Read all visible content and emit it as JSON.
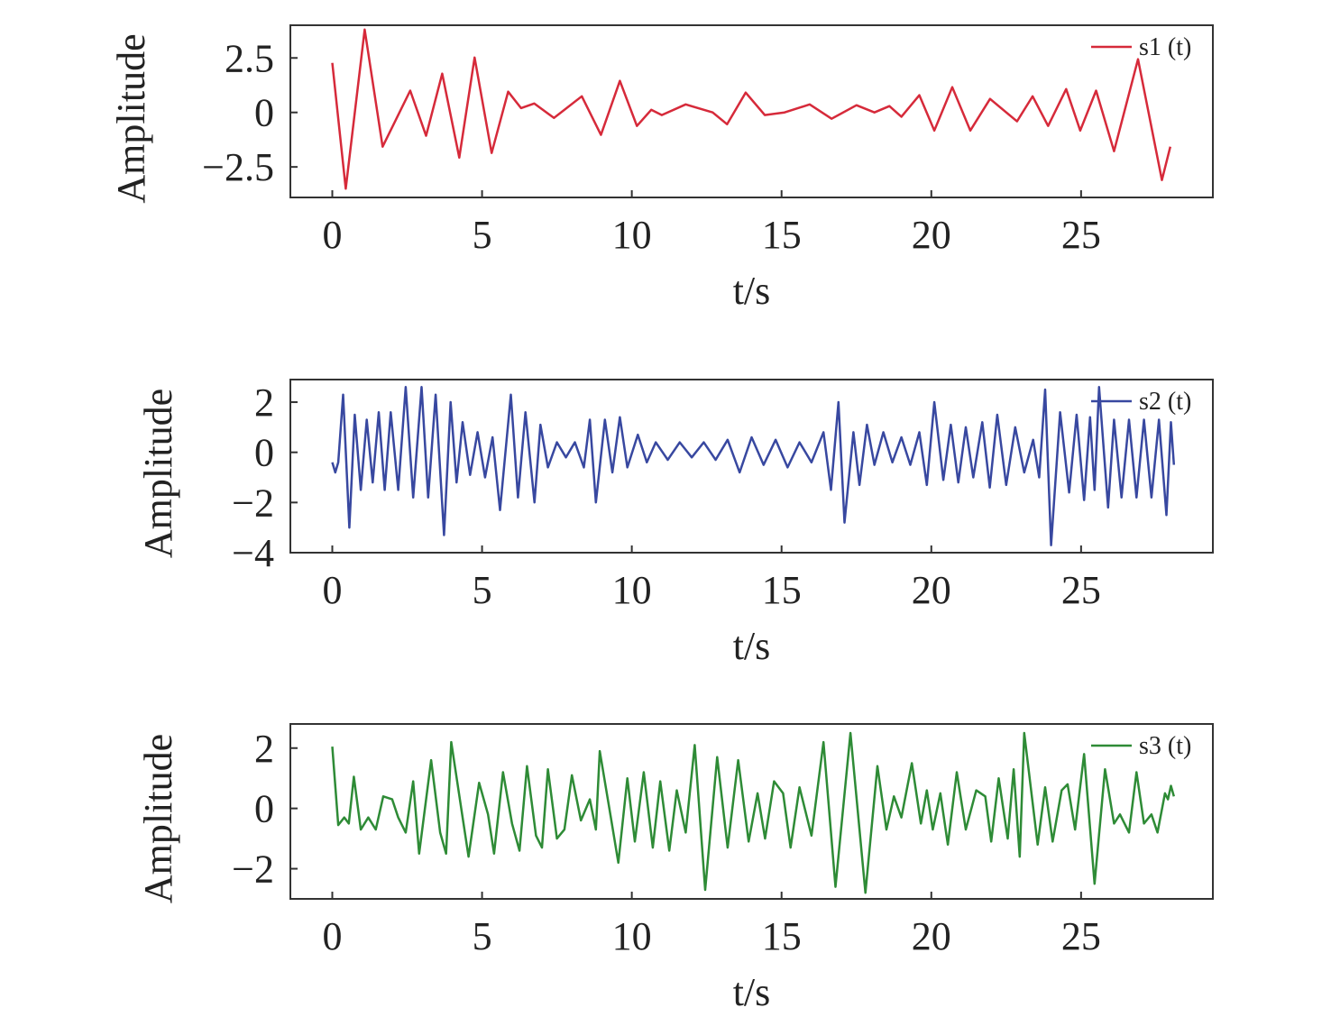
{
  "chart_data": [
    {
      "type": "line",
      "xlabel": "t/s",
      "ylabel": "Amplitude",
      "legend": "upper right",
      "xlim": [
        -1.4,
        29.4
      ],
      "xticks": [
        0,
        5,
        10,
        15,
        20,
        25
      ],
      "ylim": [
        -3.9,
        4.0
      ],
      "yticks": [
        {
          "value": -2.5,
          "label": "−2.5"
        },
        0,
        2.5
      ],
      "x": [
        0,
        0.45,
        1.08,
        1.68,
        2.6,
        3.13,
        3.67,
        4.24,
        4.75,
        5.32,
        5.87,
        6.3,
        6.74,
        7.4,
        8.33,
        8.97,
        9.6,
        10.17,
        10.65,
        11.0,
        11.8,
        12.7,
        13.18,
        13.8,
        14.44,
        15.1,
        15.94,
        16.67,
        17.5,
        18.1,
        18.6,
        19.0,
        19.6,
        20.1,
        20.7,
        21.3,
        21.96,
        22.86,
        23.38,
        23.9,
        24.5,
        24.97,
        25.5,
        26.1,
        26.9,
        27.7,
        27.98
      ],
      "series": [
        {
          "name": "s1 (t)",
          "color": "#d62a3a",
          "values": [
            2.27,
            -3.5,
            3.8,
            -1.57,
            1.0,
            -1.07,
            1.78,
            -2.07,
            2.52,
            -1.86,
            0.95,
            0.2,
            0.41,
            -0.25,
            0.74,
            -1.03,
            1.45,
            -0.62,
            0.12,
            -0.12,
            0.37,
            0.0,
            -0.54,
            0.91,
            -0.12,
            0.0,
            0.37,
            -0.29,
            0.33,
            0.0,
            0.29,
            -0.2,
            0.79,
            -0.83,
            1.16,
            -0.83,
            0.62,
            -0.41,
            0.74,
            -0.62,
            1.07,
            -0.83,
            1.0,
            -1.78,
            2.44,
            -3.1,
            -1.57
          ]
        }
      ]
    },
    {
      "type": "line",
      "xlabel": "t/s",
      "ylabel": "Amplitude",
      "legend": "upper right",
      "xlim": [
        -1.4,
        29.4
      ],
      "xticks": [
        0,
        5,
        10,
        15,
        20,
        25
      ],
      "ylim": [
        -4,
        2.9
      ],
      "yticks": [
        {
          "value": -4,
          "label": "−4"
        },
        {
          "value": -2,
          "label": "−2"
        },
        0,
        2
      ],
      "x": [
        0,
        0.1,
        0.2,
        0.36,
        0.57,
        0.75,
        0.95,
        1.15,
        1.35,
        1.55,
        1.75,
        1.95,
        2.2,
        2.45,
        2.7,
        2.98,
        3.2,
        3.45,
        3.73,
        3.95,
        4.15,
        4.35,
        4.6,
        4.85,
        5.1,
        5.35,
        5.6,
        5.96,
        6.2,
        6.45,
        6.75,
        6.95,
        7.2,
        7.5,
        7.8,
        8.1,
        8.4,
        8.6,
        8.8,
        9.1,
        9.35,
        9.6,
        9.85,
        10.2,
        10.5,
        10.8,
        11.2,
        11.6,
        12.0,
        12.4,
        12.8,
        13.2,
        13.6,
        14.0,
        14.4,
        14.8,
        15.2,
        15.6,
        16.0,
        16.4,
        16.65,
        16.9,
        17.1,
        17.4,
        17.6,
        17.85,
        18.1,
        18.4,
        18.7,
        19.0,
        19.3,
        19.6,
        19.85,
        20.1,
        20.4,
        20.65,
        20.9,
        21.15,
        21.4,
        21.7,
        21.95,
        22.2,
        22.5,
        22.8,
        23.1,
        23.4,
        23.6,
        23.8,
        24.0,
        24.3,
        24.6,
        24.85,
        25.1,
        25.3,
        25.45,
        25.6,
        25.9,
        26.1,
        26.35,
        26.6,
        26.85,
        27.1,
        27.35,
        27.6,
        27.85,
        28.0,
        28.1
      ],
      "series": [
        {
          "name": "s2 (t)",
          "color": "#3848a0",
          "values": [
            -0.4,
            -0.8,
            -0.4,
            2.3,
            -3.0,
            1.5,
            -1.5,
            1.3,
            -1.2,
            1.6,
            -1.5,
            1.6,
            -1.5,
            2.6,
            -1.8,
            2.6,
            -1.8,
            2.3,
            -3.3,
            2.0,
            -1.2,
            1.2,
            -0.9,
            0.8,
            -1.0,
            0.6,
            -2.3,
            2.3,
            -1.8,
            1.6,
            -2.0,
            1.1,
            -0.6,
            0.4,
            -0.2,
            0.4,
            -0.6,
            1.3,
            -2.0,
            1.3,
            -0.8,
            1.4,
            -0.6,
            0.7,
            -0.4,
            0.4,
            -0.3,
            0.4,
            -0.2,
            0.4,
            -0.3,
            0.5,
            -0.8,
            0.6,
            -0.5,
            0.5,
            -0.6,
            0.4,
            -0.4,
            0.8,
            -1.5,
            2.0,
            -2.8,
            0.8,
            -1.3,
            1.1,
            -0.5,
            0.8,
            -0.4,
            0.6,
            -0.5,
            0.8,
            -1.3,
            2.0,
            -1.1,
            1.1,
            -1.2,
            1.0,
            -1.0,
            1.2,
            -1.4,
            1.5,
            -1.3,
            1.0,
            -0.8,
            0.5,
            -1.0,
            2.5,
            -3.7,
            1.6,
            -1.6,
            1.5,
            -1.9,
            1.4,
            -1.5,
            2.6,
            -2.2,
            1.3,
            -1.8,
            1.3,
            -1.8,
            1.3,
            -1.8,
            1.3,
            -2.5,
            1.2,
            -0.5
          ]
        }
      ]
    },
    {
      "type": "line",
      "xlabel": "t/s",
      "ylabel": "Amplitude",
      "legend": "upper right",
      "xlim": [
        -1.4,
        29.4
      ],
      "xticks": [
        0,
        5,
        10,
        15,
        20,
        25
      ],
      "ylim": [
        -3.0,
        2.8
      ],
      "yticks": [
        {
          "value": -2,
          "label": "−2"
        },
        0,
        2
      ],
      "x": [
        0,
        0.2,
        0.4,
        0.55,
        0.72,
        0.95,
        1.2,
        1.45,
        1.7,
        2.0,
        2.2,
        2.45,
        2.7,
        2.9,
        3.3,
        3.6,
        3.8,
        3.97,
        4.35,
        4.55,
        4.9,
        5.2,
        5.4,
        5.7,
        6.0,
        6.25,
        6.5,
        6.8,
        7.0,
        7.2,
        7.5,
        7.75,
        8.0,
        8.3,
        8.6,
        8.8,
        8.93,
        9.3,
        9.55,
        9.85,
        10.1,
        10.4,
        10.7,
        10.95,
        11.25,
        11.5,
        11.8,
        12.1,
        12.45,
        12.85,
        13.2,
        13.55,
        13.9,
        14.2,
        14.45,
        14.75,
        15.05,
        15.3,
        15.6,
        16.0,
        16.4,
        16.8,
        17.3,
        17.8,
        18.2,
        18.5,
        18.75,
        19.0,
        19.35,
        19.65,
        19.85,
        20.05,
        20.3,
        20.55,
        20.85,
        21.15,
        21.5,
        21.8,
        22.0,
        22.25,
        22.55,
        22.75,
        22.95,
        23.1,
        23.55,
        23.8,
        24.05,
        24.35,
        24.55,
        24.8,
        25.1,
        25.45,
        25.8,
        26.1,
        26.3,
        26.6,
        26.85,
        27.1,
        27.35,
        27.55,
        27.8,
        27.9,
        28.0,
        28.1
      ],
      "series": [
        {
          "name": "s3 (t)",
          "color": "#2e8b36",
          "values": [
            2.05,
            -0.55,
            -0.3,
            -0.5,
            1.05,
            -0.7,
            -0.3,
            -0.7,
            0.4,
            0.3,
            -0.3,
            -0.8,
            0.9,
            -1.5,
            1.6,
            -0.8,
            -1.5,
            2.2,
            -0.3,
            -1.6,
            0.85,
            -0.2,
            -1.5,
            1.2,
            -0.5,
            -1.4,
            1.4,
            -0.9,
            -1.3,
            1.3,
            -1.0,
            -0.7,
            1.1,
            -0.4,
            0.3,
            -0.7,
            1.9,
            -0.3,
            -1.8,
            1.0,
            -1.1,
            1.2,
            -1.3,
            0.9,
            -1.4,
            0.6,
            -0.8,
            2.1,
            -2.7,
            1.7,
            -1.3,
            1.6,
            -1.1,
            0.5,
            -1.0,
            0.9,
            0.5,
            -1.3,
            0.7,
            -0.9,
            2.2,
            -2.6,
            2.5,
            -2.8,
            1.4,
            -0.7,
            0.4,
            -0.3,
            1.5,
            -0.5,
            0.6,
            -0.7,
            0.5,
            -1.2,
            1.2,
            -0.7,
            0.6,
            0.4,
            -1.1,
            1.0,
            -1.0,
            1.3,
            -1.6,
            2.5,
            -1.2,
            0.7,
            -1.1,
            0.6,
            0.8,
            -0.7,
            1.8,
            -2.5,
            1.3,
            -0.5,
            -0.2,
            -0.8,
            1.2,
            -0.5,
            -0.2,
            -0.8,
            0.5,
            0.3,
            0.75,
            0.4
          ]
        }
      ]
    }
  ]
}
